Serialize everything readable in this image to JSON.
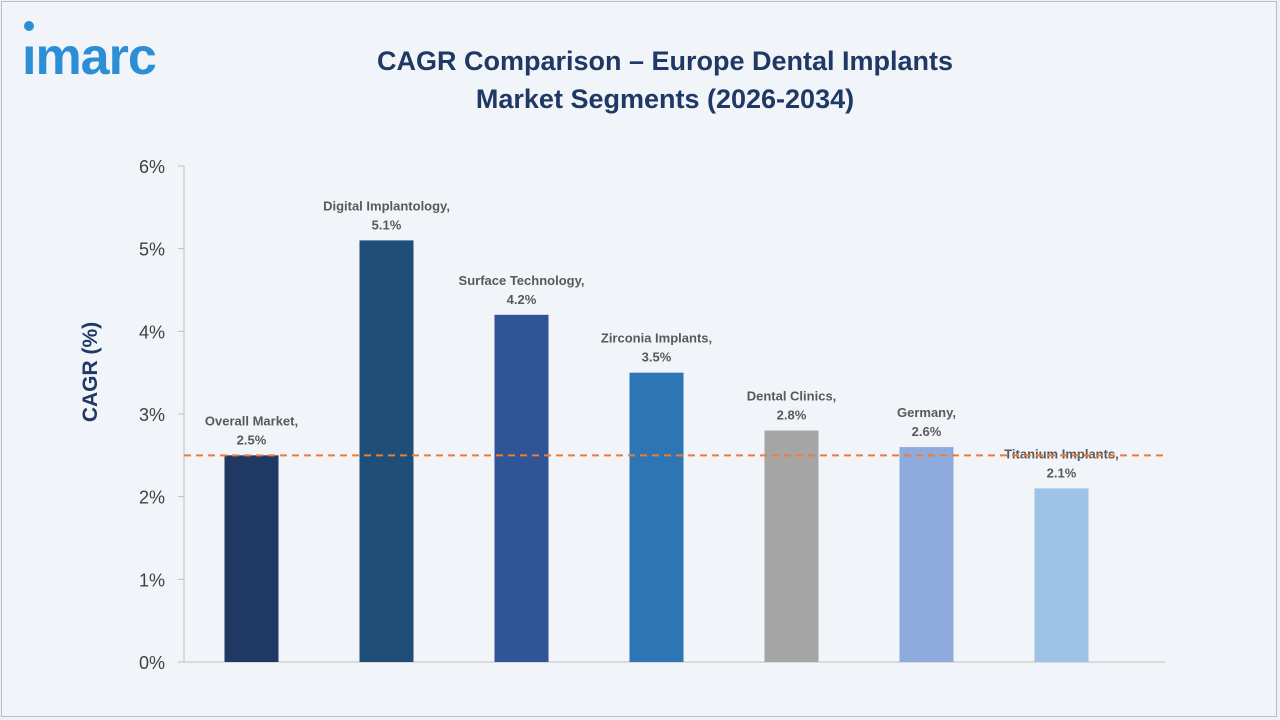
{
  "brand": {
    "logo_text": "imarc",
    "logo_color": "#2c8fd6"
  },
  "chart_data": {
    "type": "bar",
    "title": "CAGR Comparison – Europe Dental Implants Market Segments (2026-2034)",
    "title_lines": [
      "CAGR Comparison – Europe Dental Implants",
      "Market Segments (2026-2034)"
    ],
    "xlabel": "",
    "ylabel": "CAGR (%)",
    "ylim": [
      0,
      6
    ],
    "yticks": [
      0,
      1,
      2,
      3,
      4,
      5,
      6
    ],
    "ytick_labels": [
      "0%",
      "1%",
      "2%",
      "3%",
      "4%",
      "5%",
      "6%"
    ],
    "categories": [
      "Overall Market",
      "Digital Implantology",
      "Surface Technology",
      "Zirconia Implants",
      "Dental Clinics",
      "Germany",
      "Titanium Implants"
    ],
    "values": [
      2.5,
      5.1,
      4.2,
      3.5,
      2.8,
      2.6,
      2.1
    ],
    "data_labels": [
      [
        "Overall Market,",
        "2.5%"
      ],
      [
        "Digital Implantology,",
        "5.1%"
      ],
      [
        "Surface Technology,",
        "4.2%"
      ],
      [
        "Zirconia Implants,",
        "3.5%"
      ],
      [
        "Dental Clinics,",
        "2.8%"
      ],
      [
        "Germany,",
        "2.6%"
      ],
      [
        "Titanium Implants,",
        "2.1%"
      ]
    ],
    "bar_colors": [
      "#203864",
      "#1f4e79",
      "#2f5597",
      "#2e75b6",
      "#a5a5a5",
      "#8faadc",
      "#9dc3e6"
    ],
    "reference_line": {
      "value": 2.5,
      "style": "dashed",
      "color": "#ed7d31"
    },
    "grid": false,
    "legend": "none"
  }
}
